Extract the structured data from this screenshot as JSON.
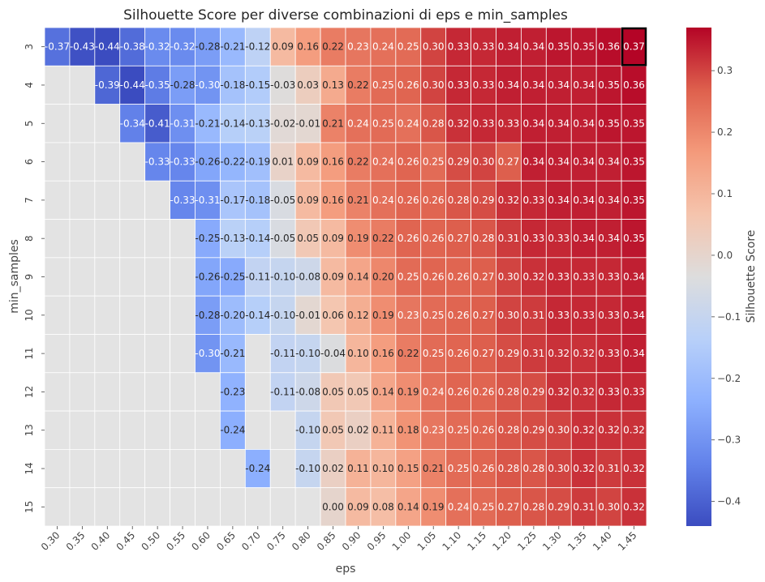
{
  "chart_data": {
    "type": "heatmap",
    "title": "Silhouette Score per diverse combinazioni di eps e min_samples",
    "xlabel": "eps",
    "ylabel": "min_samples",
    "colorbar_label": "Silhouette Score",
    "colormap": "coolwarm",
    "missing_color": "#e3e3e3",
    "highlight_color": "#000000",
    "vmin": -0.44,
    "vmax": 0.37,
    "colorbar_ticks": [
      0.3,
      0.2,
      0.1,
      0.0,
      -0.1,
      -0.2,
      -0.3,
      -0.4
    ],
    "colorbar_tick_labels": [
      "0.3",
      "0.2",
      "0.1",
      "0.0",
      "−0.1",
      "−0.2",
      "−0.3",
      "−0.4"
    ],
    "x_categories": [
      "0.30",
      "0.35",
      "0.40",
      "0.45",
      "0.50",
      "0.55",
      "0.60",
      "0.65",
      "0.70",
      "0.75",
      "0.80",
      "0.85",
      "0.90",
      "0.95",
      "1.00",
      "1.05",
      "1.10",
      "1.15",
      "1.20",
      "1.25",
      "1.30",
      "1.35",
      "1.40",
      "1.45"
    ],
    "y_categories": [
      "3",
      "4",
      "5",
      "6",
      "7",
      "8",
      "9",
      "10",
      "11",
      "12",
      "13",
      "14",
      "15"
    ],
    "highlight": {
      "row": "3",
      "col": "1.45"
    },
    "values": [
      [
        -0.37,
        -0.43,
        -0.44,
        -0.38,
        -0.32,
        -0.32,
        -0.28,
        -0.21,
        -0.12,
        0.09,
        0.16,
        0.22,
        0.23,
        0.24,
        0.25,
        0.3,
        0.33,
        0.33,
        0.34,
        0.34,
        0.35,
        0.35,
        0.36,
        0.37
      ],
      [
        null,
        null,
        -0.39,
        -0.44,
        -0.35,
        -0.28,
        -0.3,
        -0.18,
        -0.15,
        -0.03,
        0.03,
        0.13,
        0.22,
        0.25,
        0.26,
        0.3,
        0.33,
        0.33,
        0.34,
        0.34,
        0.34,
        0.34,
        0.35,
        0.36
      ],
      [
        null,
        null,
        null,
        -0.34,
        -0.41,
        -0.31,
        -0.21,
        -0.14,
        -0.13,
        -0.02,
        -0.01,
        0.21,
        0.24,
        0.25,
        0.24,
        0.28,
        0.32,
        0.33,
        0.33,
        0.34,
        0.34,
        0.34,
        0.35,
        0.35
      ],
      [
        null,
        null,
        null,
        null,
        -0.33,
        -0.33,
        -0.26,
        -0.22,
        -0.19,
        0.01,
        0.09,
        0.16,
        0.22,
        0.24,
        0.26,
        0.25,
        0.29,
        0.3,
        0.27,
        0.34,
        0.34,
        0.34,
        0.34,
        0.35
      ],
      [
        null,
        null,
        null,
        null,
        null,
        -0.33,
        -0.31,
        -0.17,
        -0.18,
        -0.05,
        0.09,
        0.16,
        0.21,
        0.24,
        0.26,
        0.26,
        0.28,
        0.29,
        0.32,
        0.33,
        0.34,
        0.34,
        0.34,
        0.35
      ],
      [
        null,
        null,
        null,
        null,
        null,
        null,
        -0.25,
        -0.13,
        -0.14,
        -0.05,
        0.05,
        0.09,
        0.19,
        0.22,
        0.26,
        0.26,
        0.27,
        0.28,
        0.31,
        0.33,
        0.33,
        0.34,
        0.34,
        0.35
      ],
      [
        null,
        null,
        null,
        null,
        null,
        null,
        -0.26,
        -0.25,
        -0.11,
        -0.1,
        -0.08,
        0.09,
        0.14,
        0.2,
        0.25,
        0.26,
        0.26,
        0.27,
        0.3,
        0.32,
        0.33,
        0.33,
        0.33,
        0.34
      ],
      [
        null,
        null,
        null,
        null,
        null,
        null,
        -0.28,
        -0.2,
        -0.14,
        -0.1,
        -0.01,
        0.06,
        0.12,
        0.19,
        0.23,
        0.25,
        0.26,
        0.27,
        0.3,
        0.31,
        0.33,
        0.33,
        0.33,
        0.34
      ],
      [
        null,
        null,
        null,
        null,
        null,
        null,
        -0.3,
        -0.21,
        null,
        -0.11,
        -0.1,
        -0.04,
        0.1,
        0.16,
        0.22,
        0.25,
        0.26,
        0.27,
        0.29,
        0.31,
        0.32,
        0.32,
        0.33,
        0.34
      ],
      [
        null,
        null,
        null,
        null,
        null,
        null,
        null,
        -0.23,
        null,
        -0.11,
        -0.08,
        0.05,
        0.05,
        0.14,
        0.19,
        0.24,
        0.26,
        0.26,
        0.28,
        0.29,
        0.32,
        0.32,
        0.33,
        0.33
      ],
      [
        null,
        null,
        null,
        null,
        null,
        null,
        null,
        -0.24,
        null,
        null,
        -0.1,
        0.05,
        0.02,
        0.11,
        0.18,
        0.23,
        0.25,
        0.26,
        0.28,
        0.29,
        0.3,
        0.32,
        0.32,
        0.32
      ],
      [
        null,
        null,
        null,
        null,
        null,
        null,
        null,
        null,
        -0.24,
        null,
        -0.1,
        0.02,
        0.11,
        0.1,
        0.15,
        0.21,
        0.25,
        0.26,
        0.28,
        0.28,
        0.3,
        0.32,
        0.31,
        0.32
      ],
      [
        null,
        null,
        null,
        null,
        null,
        null,
        null,
        null,
        null,
        null,
        null,
        0.0,
        0.09,
        0.08,
        0.14,
        0.19,
        0.24,
        0.25,
        0.27,
        0.28,
        0.29,
        0.31,
        0.3,
        0.32
      ]
    ]
  }
}
